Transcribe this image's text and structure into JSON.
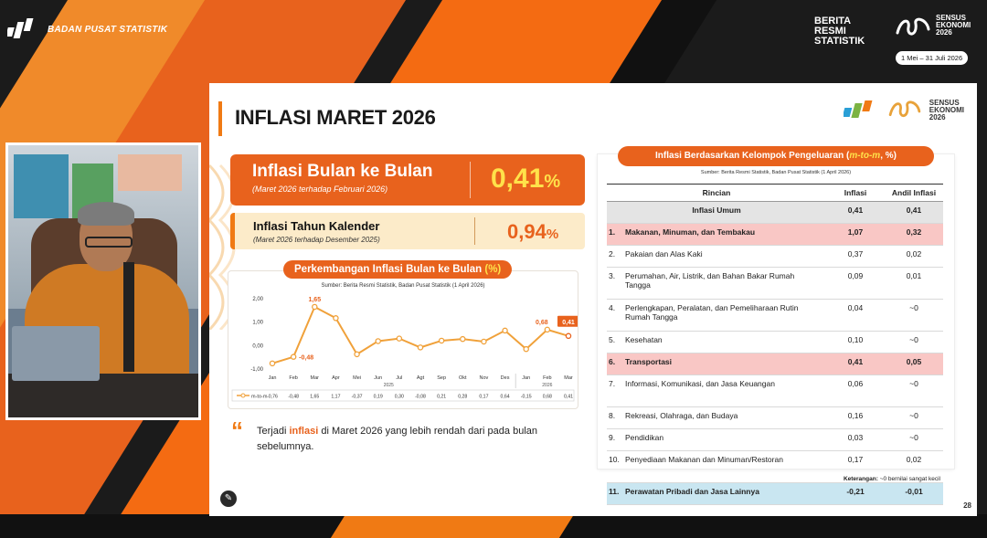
{
  "broadcast": {
    "org_name": "BADAN PUSAT STATISTIK",
    "brs_lines": [
      "BERITA",
      "RESMI",
      "STATISTIK"
    ],
    "sensus_lines": [
      "SENSUS",
      "EKONOMI",
      "2026"
    ],
    "date_range": "1 Mei – 31 Juli 2026"
  },
  "slide": {
    "title": "INFLASI MARET 2026",
    "logo_lines": [
      "SENSUS",
      "EKONOMI",
      "2026"
    ],
    "kpi_mtm": {
      "label": "Inflasi Bulan ke Bulan",
      "sub": "(Maret 2026 terhadap Februari 2026)",
      "value": "0,41",
      "unit": "%"
    },
    "kpi_ytd": {
      "label": "Inflasi Tahun Kalender",
      "sub": "(Maret 2026 terhadap Desember 2025)",
      "value": "0,94",
      "unit": "%"
    },
    "chart_title": "Perkembangan Inflasi Bulan ke Bulan",
    "chart_title_unit": "(%)",
    "chart_source": "Sumber: Berita Resmi Statistik, Badan Pusat Statistik (1 April 2026)",
    "quote_prefix": "Terjadi ",
    "quote_highlight": "inflasi",
    "quote_suffix": " di Maret 2026 yang lebih rendah dari pada bulan sebelumnya.",
    "table_title_prefix": "Inflasi Berdasarkan Kelompok Pengeluaran (",
    "table_title_em": "m-to-m",
    "table_title_suffix": ", %)",
    "table_source": "Sumber: Berita Resmi Statistik, Badan Pusat Statistik (1 April 2026)",
    "table_cols": {
      "rincian": "Rincian",
      "inflasi": "Inflasi",
      "andil": "Andil Inflasi"
    },
    "table_rows": [
      {
        "no": "",
        "label": "Inflasi Umum",
        "inflasi": "0,41",
        "andil": "0,41",
        "style": "umum"
      },
      {
        "no": "1.",
        "label": "Makanan, Minuman, dan Tembakau",
        "inflasi": "1,07",
        "andil": "0,32",
        "style": "pink"
      },
      {
        "no": "2.",
        "label": "Pakaian dan Alas Kaki",
        "inflasi": "0,37",
        "andil": "0,02",
        "style": ""
      },
      {
        "no": "3.",
        "label": "Perumahan, Air, Listrik, dan Bahan Bakar Rumah Tangga",
        "inflasi": "0,09",
        "andil": "0,01",
        "style": ""
      },
      {
        "no": "4.",
        "label": "Perlengkapan, Peralatan, dan Pemeliharaan Rutin Rumah Tangga",
        "inflasi": "0,04",
        "andil": "~0",
        "style": ""
      },
      {
        "no": "5.",
        "label": "Kesehatan",
        "inflasi": "0,10",
        "andil": "~0",
        "style": ""
      },
      {
        "no": "6.",
        "label": "Transportasi",
        "inflasi": "0,41",
        "andil": "0,05",
        "style": "pink"
      },
      {
        "no": "7.",
        "label": "Informasi, Komunikasi, dan Jasa Keuangan",
        "inflasi": "0,06",
        "andil": "~0",
        "style": ""
      },
      {
        "no": "8.",
        "label": "Rekreasi, Olahraga, dan Budaya",
        "inflasi": "0,16",
        "andil": "~0",
        "style": ""
      },
      {
        "no": "9.",
        "label": "Pendidikan",
        "inflasi": "0,03",
        "andil": "~0",
        "style": ""
      },
      {
        "no": "10.",
        "label": "Penyediaan Makanan dan Minuman/Restoran",
        "inflasi": "0,17",
        "andil": "0,02",
        "style": ""
      },
      {
        "no": "11.",
        "label": "Perawatan Pribadi dan Jasa Lainnya",
        "inflasi": "-0,21",
        "andil": "-0,01",
        "style": "blue"
      }
    ],
    "note_label": "Keterangan:",
    "note_text": "~0 bernilai sangat kecil",
    "page_number": "28"
  },
  "chart_data": {
    "type": "line",
    "categories": [
      "Jan",
      "Feb",
      "Mar",
      "Apr",
      "Mei",
      "Jun",
      "Jul",
      "Agt",
      "Sep",
      "Okt",
      "Nov",
      "Des",
      "Jan",
      "Feb",
      "Mar"
    ],
    "year_labels": [
      "2025",
      "2026"
    ],
    "series": [
      {
        "name": "m-to-m",
        "values": [
          -0.76,
          -0.48,
          1.65,
          1.17,
          -0.37,
          0.19,
          0.3,
          -0.08,
          0.21,
          0.28,
          0.17,
          0.64,
          -0.15,
          0.68,
          0.41
        ]
      }
    ],
    "value_labels": [
      "-0,76",
      "-0,48",
      "1,65",
      "1,17",
      "-0,37",
      "0,19",
      "0,30",
      "-0,08",
      "0,21",
      "0,28",
      "0,17",
      "0,64",
      "-0,15",
      "0,68",
      "0,41"
    ],
    "annotated": {
      "1": "-0,48",
      "2": "1,65",
      "13": "0,68",
      "14": "0,41"
    },
    "y_ticks": [
      "2,00",
      "1,00",
      "0,00",
      "-1,00"
    ],
    "ylim": [
      -1,
      2
    ],
    "colors": {
      "line": "#f0a13a",
      "accent": "#e8621d",
      "last_point": "#e8621d"
    }
  }
}
